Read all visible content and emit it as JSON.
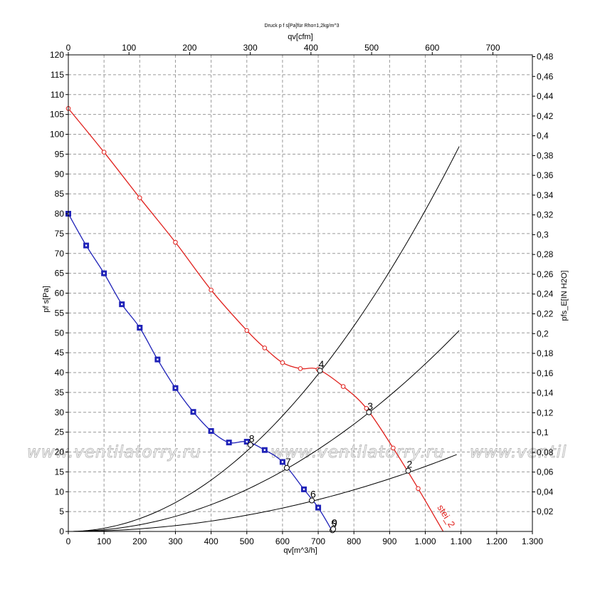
{
  "chart_data": {
    "type": "line",
    "title": "Druck p f s[Pa]für Rho=1,2kg/m^3",
    "xlabel": "qv[m^3/h]",
    "x2label": "qv[cfm]",
    "ylabel": "pf s[Pa]",
    "y2label": "pfs_E[IN H2O]",
    "xlim": [
      0,
      1300
    ],
    "ylim": [
      0,
      120
    ],
    "x2lim": [
      0,
      765.1
    ],
    "y2lim": [
      0,
      0.4818
    ],
    "grid": true,
    "x_ticks": [
      "0",
      "100",
      "200",
      "300",
      "400",
      "500",
      "600",
      "700",
      "800",
      "900",
      "1.000",
      "1.100",
      "1.200",
      "1.300"
    ],
    "x_tick_values": [
      0,
      100,
      200,
      300,
      400,
      500,
      600,
      700,
      800,
      900,
      1000,
      1100,
      1200,
      1300
    ],
    "y_ticks": [
      "0",
      "5",
      "10",
      "15",
      "20",
      "25",
      "30",
      "35",
      "40",
      "45",
      "50",
      "55",
      "60",
      "65",
      "70",
      "75",
      "80",
      "85",
      "90",
      "95",
      "100",
      "105",
      "110",
      "115",
      "120"
    ],
    "y_tick_values": [
      0,
      5,
      10,
      15,
      20,
      25,
      30,
      35,
      40,
      45,
      50,
      55,
      60,
      65,
      70,
      75,
      80,
      85,
      90,
      95,
      100,
      105,
      110,
      115,
      120
    ],
    "x2_ticks": [
      "0",
      "100",
      "200",
      "300",
      "400",
      "500",
      "600",
      "700"
    ],
    "x2_tick_values": [
      0,
      100,
      200,
      300,
      400,
      500,
      600,
      700
    ],
    "y2_ticks": [
      "0,02",
      "0,04",
      "0,06",
      "0,08",
      "0,1",
      "0,12",
      "0,14",
      "0,16",
      "0,18",
      "0,2",
      "0,22",
      "0,24",
      "0,26",
      "0,28",
      "0,3",
      "0,32",
      "0,34",
      "0,36",
      "0,38",
      "0,4",
      "0,42",
      "0,44",
      "0,46",
      "0,48"
    ],
    "y2_tick_values": [
      0.02,
      0.04,
      0.06,
      0.08,
      0.1,
      0.12,
      0.14,
      0.16,
      0.18,
      0.2,
      0.22,
      0.24,
      0.26,
      0.28,
      0.3,
      0.32,
      0.34,
      0.36,
      0.38,
      0.4,
      0.42,
      0.44,
      0.46,
      0.48
    ],
    "series": [
      {
        "label": "stei_2",
        "color": "#e0201c",
        "x": [
          0,
          100,
          200,
          300,
          400,
          500,
          550,
          600,
          650,
          700,
          770,
          835,
          910,
          980,
          1050
        ],
        "y": [
          106.5,
          95.5,
          84,
          72.8,
          60.8,
          50.6,
          46.2,
          42.5,
          41,
          40.8,
          36.5,
          31,
          21,
          10.8,
          0
        ]
      },
      {
        "label": "",
        "color": "#1f22b8",
        "x": [
          0,
          50,
          100,
          150,
          200,
          250,
          300,
          350,
          400,
          450,
          500,
          550,
          600,
          660,
          700,
          740
        ],
        "y": [
          80,
          72,
          65,
          57.2,
          51.3,
          43.3,
          36.1,
          30.1,
          25.3,
          22.4,
          22.6,
          20.5,
          17.5,
          10.6,
          6,
          0
        ]
      }
    ],
    "system_curves": [
      {
        "k": 8.085e-05,
        "x_end": 1095
      },
      {
        "k": 4.219e-05,
        "x_end": 1095
      },
      {
        "k": 1.636e-05,
        "x_end": 1088
      }
    ],
    "operating_points": [
      {
        "label": "2",
        "x": 952,
        "y": 15.3
      },
      {
        "label": "3",
        "x": 842,
        "y": 30
      },
      {
        "label": "4",
        "x": 705,
        "y": 40.5
      },
      {
        "label": "5",
        "x": 740,
        "y": 0.3
      },
      {
        "label": "6",
        "x": 682,
        "y": 7.8
      },
      {
        "label": "7",
        "x": 612,
        "y": 16
      },
      {
        "label": "8",
        "x": 510,
        "y": 21.8
      },
      {
        "label": "9",
        "x": 742,
        "y": 0.6
      }
    ],
    "watermark": [
      "www.ventilatorry.ru",
      "www.ventilatorry.ru",
      "www.ventil"
    ]
  }
}
